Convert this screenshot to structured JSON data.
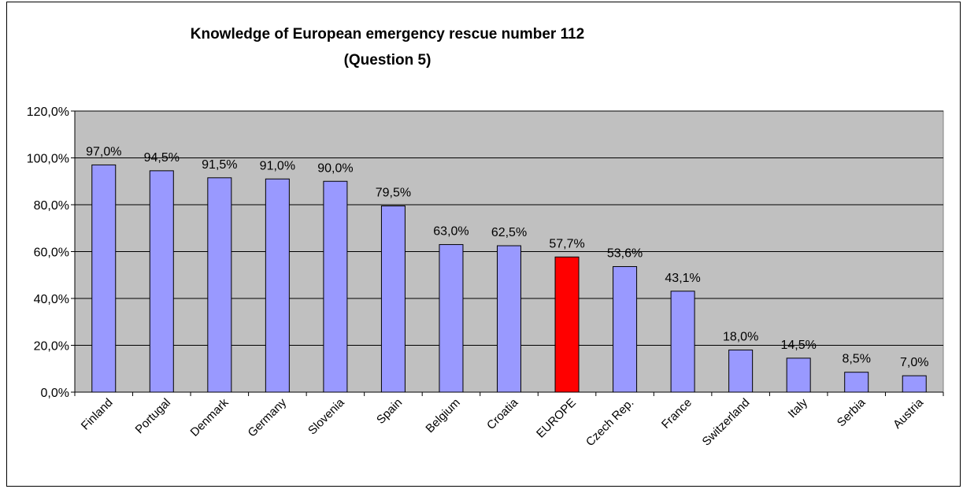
{
  "chart_data": {
    "type": "bar",
    "title": "Knowledge of European emergency rescue number 112",
    "subtitle": "(Question 5)",
    "xlabel": "",
    "ylabel": "",
    "ylim": [
      0,
      120
    ],
    "yticks": [
      "0,0%",
      "20,0%",
      "40,0%",
      "60,0%",
      "80,0%",
      "100,0%",
      "120,0%"
    ],
    "categories": [
      "Finland",
      "Portugal",
      "Denmark",
      "Germany",
      "Slovenia",
      "Spain",
      "Belgium",
      "Croatia",
      "EUROPE",
      "Czech Rep.",
      "France",
      "Switzerland",
      "Italy",
      "Serbia",
      "Austria"
    ],
    "values": [
      97.0,
      94.5,
      91.5,
      91.0,
      90.0,
      79.5,
      63.0,
      62.5,
      57.7,
      53.6,
      43.1,
      18.0,
      14.5,
      8.5,
      7.0
    ],
    "data_labels": [
      "97,0%",
      "94,5%",
      "91,5%",
      "91,0%",
      "90,0%",
      "79,5%",
      "63,0%",
      "62,5%",
      "57,7%",
      "53,6%",
      "43,1%",
      "18,0%",
      "14,5%",
      "8,5%",
      "7,0%"
    ],
    "grid": true,
    "legend": false,
    "colors": {
      "bar": "#9999ff",
      "highlight": "#ff0000",
      "highlight_category": "EUROPE",
      "plot_background": "#c0c0c0",
      "gridline": "#000000"
    }
  }
}
